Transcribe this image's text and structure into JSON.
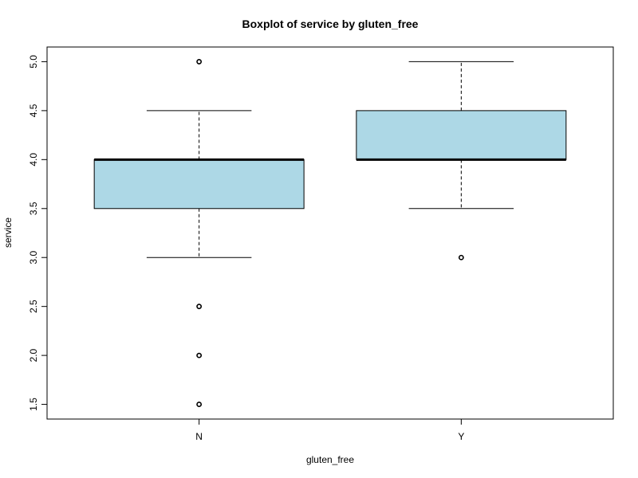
{
  "chart_data": {
    "type": "boxplot",
    "title": "Boxplot of service by gluten_free",
    "xlabel": "gluten_free",
    "ylabel": "service",
    "ylim": [
      1.35,
      5.15
    ],
    "yticks": [
      "1.5",
      "2.0",
      "2.5",
      "3.0",
      "3.5",
      "4.0",
      "4.5",
      "5.0"
    ],
    "box_color": "#add8e6",
    "groups": [
      {
        "label": "N",
        "whisker_low": 3.0,
        "q1": 3.5,
        "median": 4.0,
        "q3": 4.0,
        "whisker_high": 4.5,
        "outliers": [
          5.0,
          2.5,
          2.0,
          1.5
        ]
      },
      {
        "label": "Y",
        "whisker_low": 3.5,
        "q1": 4.0,
        "median": 4.0,
        "q3": 4.5,
        "whisker_high": 5.0,
        "outliers": [
          3.0
        ]
      }
    ]
  }
}
